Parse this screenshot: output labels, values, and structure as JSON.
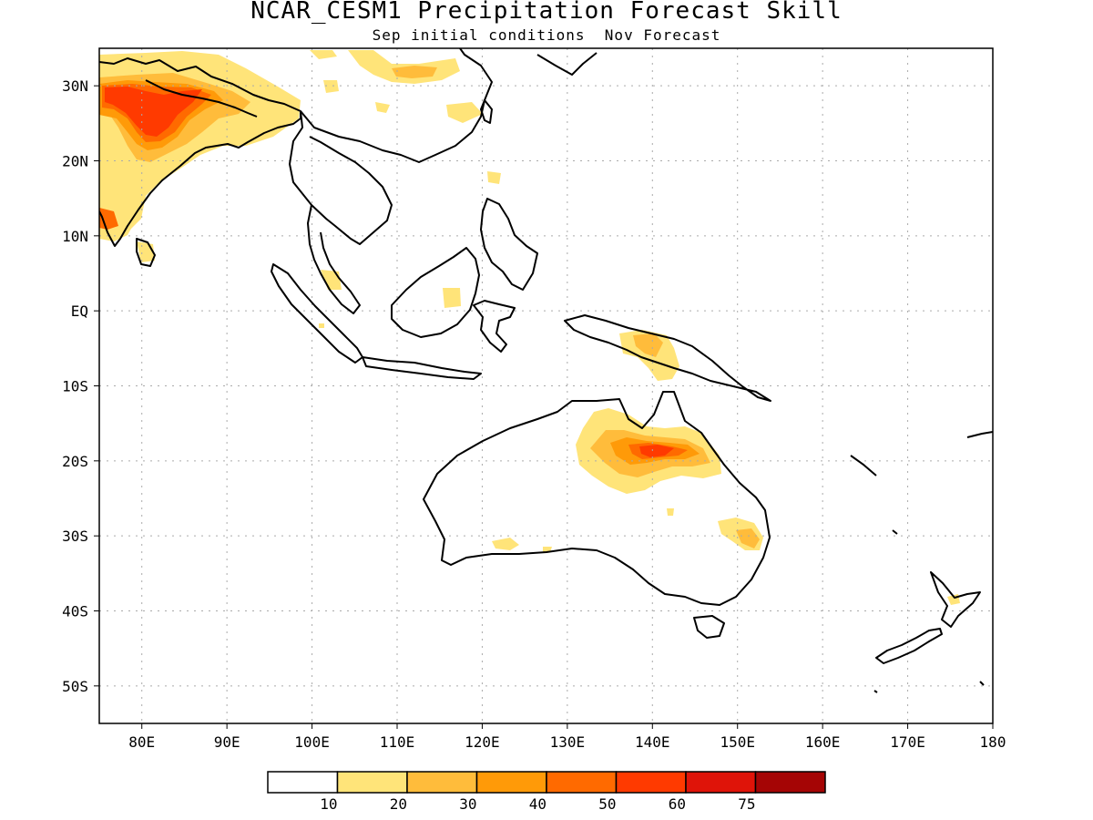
{
  "title": "NCAR_CESM1 Precipitation Forecast Skill",
  "subtitle": "Sep initial conditions  Nov Forecast",
  "map": {
    "lon_range": [
      75,
      180
    ],
    "lat_range": [
      -55,
      35
    ],
    "gridlines": true,
    "lon_ticks": [
      {
        "value": 80,
        "label": "80E"
      },
      {
        "value": 90,
        "label": "90E"
      },
      {
        "value": 100,
        "label": "100E"
      },
      {
        "value": 110,
        "label": "110E"
      },
      {
        "value": 120,
        "label": "120E"
      },
      {
        "value": 130,
        "label": "130E"
      },
      {
        "value": 140,
        "label": "140E"
      },
      {
        "value": 150,
        "label": "150E"
      },
      {
        "value": 160,
        "label": "160E"
      },
      {
        "value": 170,
        "label": "170E"
      },
      {
        "value": 180,
        "label": "180"
      }
    ],
    "lat_ticks": [
      {
        "value": 30,
        "label": "30N"
      },
      {
        "value": 20,
        "label": "20N"
      },
      {
        "value": 10,
        "label": "10N"
      },
      {
        "value": 0,
        "label": "EQ"
      },
      {
        "value": -10,
        "label": "10S"
      },
      {
        "value": -20,
        "label": "20S"
      },
      {
        "value": -30,
        "label": "30S"
      },
      {
        "value": -40,
        "label": "40S"
      },
      {
        "value": -50,
        "label": "50S"
      }
    ],
    "colors": {
      "c10": "#ffe479",
      "c20": "#ffbc3b",
      "c30": "#ff9a08",
      "c40": "#ff6a00",
      "c50": "#ff3a00",
      "c60": "#df1409",
      "c75": "#a50505"
    },
    "legend": {
      "bins": [
        "#ffffff",
        "#ffe479",
        "#ffbc3b",
        "#ff9a08",
        "#ff6a00",
        "#ff3a00",
        "#df1409",
        "#a50505"
      ],
      "labels": [
        "10",
        "20",
        "30",
        "40",
        "50",
        "60",
        "75"
      ]
    }
  }
}
